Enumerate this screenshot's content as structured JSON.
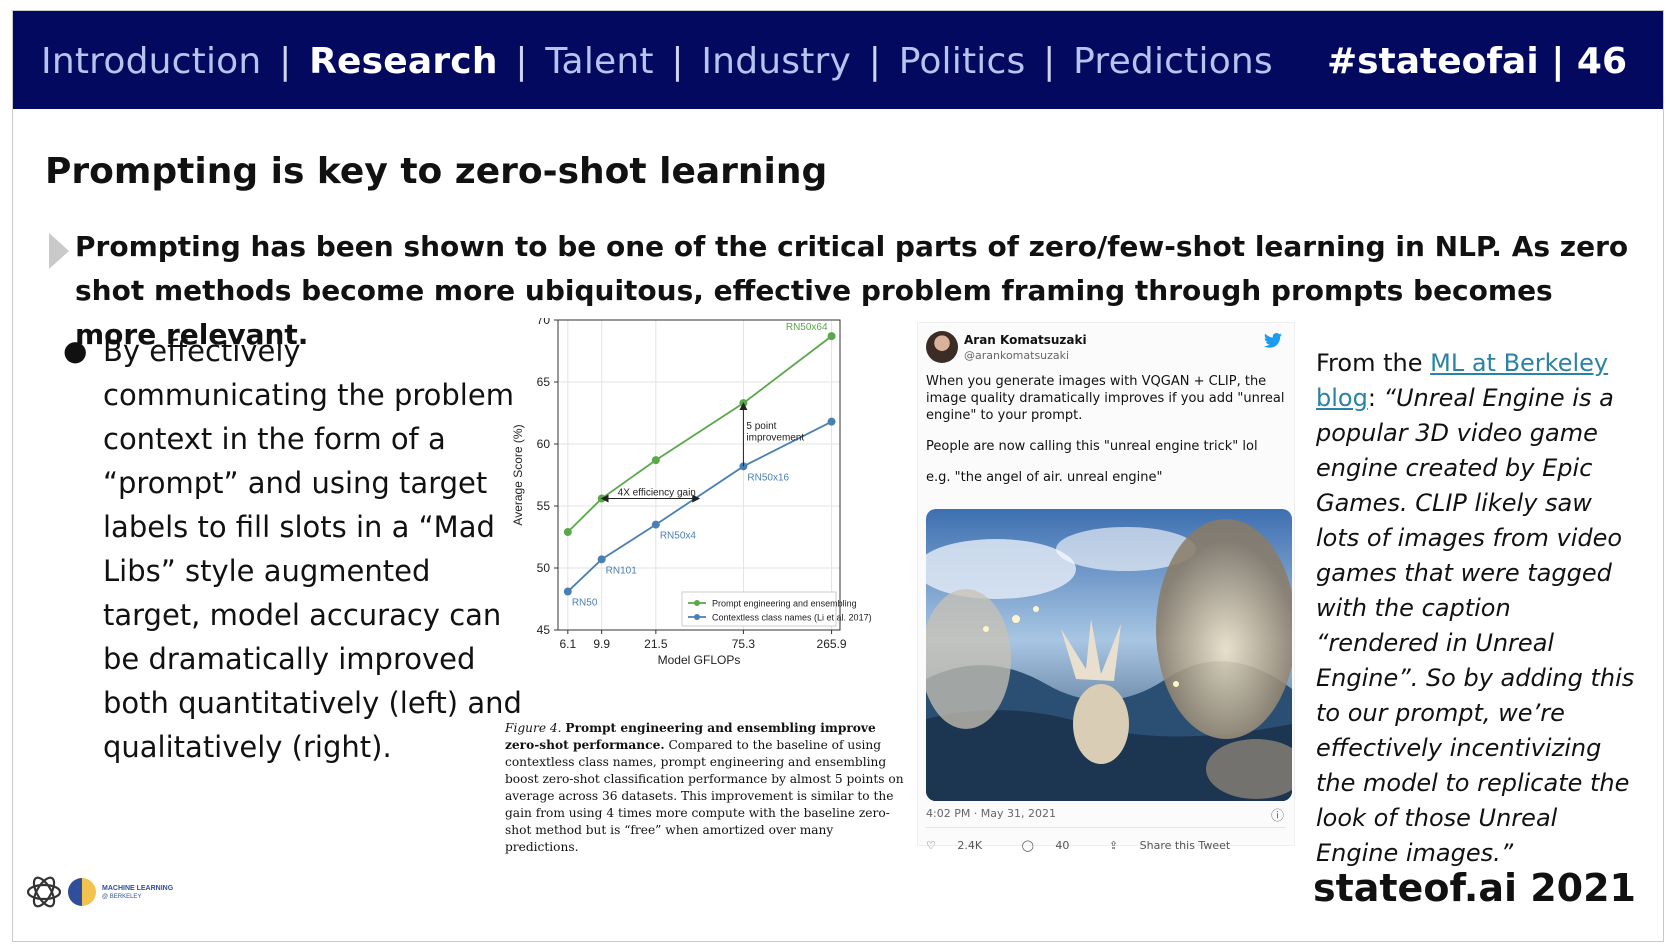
{
  "header": {
    "nav": [
      {
        "label": "Introduction",
        "active": false
      },
      {
        "label": "Research",
        "active": true
      },
      {
        "label": "Talent",
        "active": false
      },
      {
        "label": "Industry",
        "active": false
      },
      {
        "label": "Politics",
        "active": false
      },
      {
        "label": "Predictions",
        "active": false
      }
    ],
    "separator": "|",
    "tagline": "#stateofai | 46"
  },
  "slide": {
    "title": "Prompting is key to zero-shot learning",
    "lead": "Prompting has been shown to be one of the critical parts of zero/few-shot learning in NLP. As zero shot methods become more ubiquitous, effective problem framing through prompts becomes more relevant.",
    "bullet_marker": "●",
    "bullet": "By effectively communicating the problem context in the form of a “prompt” and using target labels to fill slots in a “Mad Libs” style augmented target, model accuracy can be dramatically improved both quantitatively (left) and qualitatively (right)."
  },
  "caption": {
    "fig_label": "Figure 4.",
    "bold": "Prompt engineering and ensembling improve zero-shot performance.",
    "text": "Compared to the baseline of using contextless class names, prompt engineering and ensembling boost zero-shot classification performance by almost 5 points on average across 36 datasets. This improvement is similar to the gain from using 4 times more compute with the baseline zero-shot method but is “free” when amortized over many predictions."
  },
  "tweet": {
    "name": "Aran Komatsuzaki",
    "handle": "@arankomatsuzaki",
    "bird_icon": "twitter-bird-icon",
    "body": [
      "When you generate images with VQGAN + CLIP, the image quality dramatically improves if you add \"unreal engine\" to your prompt.",
      "People are now calling this \"unreal engine trick\" lol",
      "e.g. \"the angel of air. unreal engine\""
    ],
    "time": "4:02 PM · May 31, 2021",
    "likes": "2.4K",
    "replies": "40",
    "share": "Share this Tweet"
  },
  "quote": {
    "prefix": "From the ",
    "link": "ML at Berkeley blog",
    "colon": ": ",
    "text": "“Unreal Engine is a popular 3D video game engine created by Epic Games. CLIP likely saw lots of images from video games that were tagged with the caption “rendered in Unreal Engine”. So by adding this to our prompt, we’re effectively incentivizing the model to replicate the look of those Unreal Engine images.”"
  },
  "logos": {
    "ml_berkeley_line1": "MACHINE LEARNING",
    "ml_berkeley_line2": "@ BERKELEY"
  },
  "footer": {
    "brand": "stateof.ai 2021"
  },
  "chart_data": {
    "type": "line",
    "x_ticks": [
      "6.1",
      "9.9",
      "21.5",
      "75.3",
      "265.9"
    ],
    "xlabel": "Model GFLOPs",
    "ylabel": "Average Score (%)",
    "ylim": [
      45,
      70
    ],
    "yticks": [
      45,
      50,
      55,
      60,
      65,
      70
    ],
    "x_scale": "log",
    "grid": true,
    "legend_position": "lower-right",
    "series": [
      {
        "name": "Prompt engineering and ensembling",
        "color": "#5aa84b",
        "x": [
          6.1,
          9.9,
          21.5,
          75.3,
          265.9
        ],
        "values": [
          52.9,
          55.6,
          58.7,
          63.3,
          68.7
        ],
        "point_labels": [
          "",
          "",
          "",
          "",
          "RN50x64"
        ]
      },
      {
        "name": "Contextless class names (Li et al. 2017)",
        "color": "#4a7fb5",
        "x": [
          6.1,
          9.9,
          21.5,
          75.3,
          265.9
        ],
        "values": [
          48.1,
          50.7,
          53.5,
          58.2,
          61.8
        ],
        "point_labels": [
          "RN50",
          "RN101",
          "RN50x4",
          "RN50x16",
          ""
        ]
      }
    ],
    "annotations": [
      {
        "text": "4X efficiency gain",
        "from_x": 9.9,
        "to_x": 40,
        "y": 55.6
      },
      {
        "text": "5 point improvement",
        "x": 75.3,
        "from_y": 58.2,
        "to_y": 63.3
      }
    ]
  }
}
